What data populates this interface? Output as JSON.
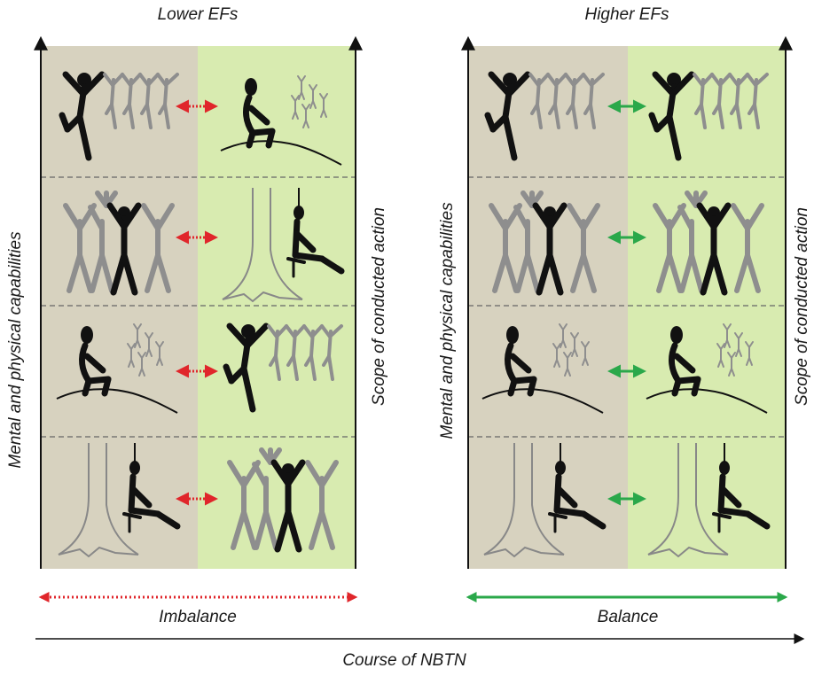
{
  "left_panel": {
    "title": "Lower EFs",
    "left_axis_label": "Mental and physical capabilities",
    "right_axis_label": "Scope of conducted action",
    "bottom_label": "Imbalance",
    "arrow_color": "#e0262b",
    "arrow_style": "dotted",
    "rows": [
      {
        "left": "jumping-figure-with-group",
        "right": "sitting-figure-on-hill"
      },
      {
        "left": "group-of-figures-cheering",
        "right": "figure-sitting-by-tree"
      },
      {
        "left": "sitting-figure-on-hill",
        "right": "jumping-figure-with-group"
      },
      {
        "left": "figure-sitting-by-tree",
        "right": "group-of-figures-cheering"
      }
    ]
  },
  "right_panel": {
    "title": "Higher EFs",
    "left_axis_label": "Mental and physical capabilities",
    "right_axis_label": "Scope of conducted action",
    "bottom_label": "Balance",
    "arrow_color": "#2aa84a",
    "arrow_style": "solid",
    "rows": [
      {
        "left": "jumping-figure-with-group",
        "right": "jumping-figure-with-group"
      },
      {
        "left": "group-of-figures-cheering",
        "right": "group-of-figures-cheering"
      },
      {
        "left": "sitting-figure-on-hill",
        "right": "sitting-figure-on-hill"
      },
      {
        "left": "figure-sitting-by-tree",
        "right": "figure-sitting-by-tree"
      }
    ]
  },
  "bottom_axis_label": "Course of NBTN",
  "colors": {
    "beige_region": "#d7d2bf",
    "green_region": "#d8ebb0",
    "figure_main": "#111111",
    "figure_group": "#8e8e8e",
    "row_divider": "#666666"
  }
}
